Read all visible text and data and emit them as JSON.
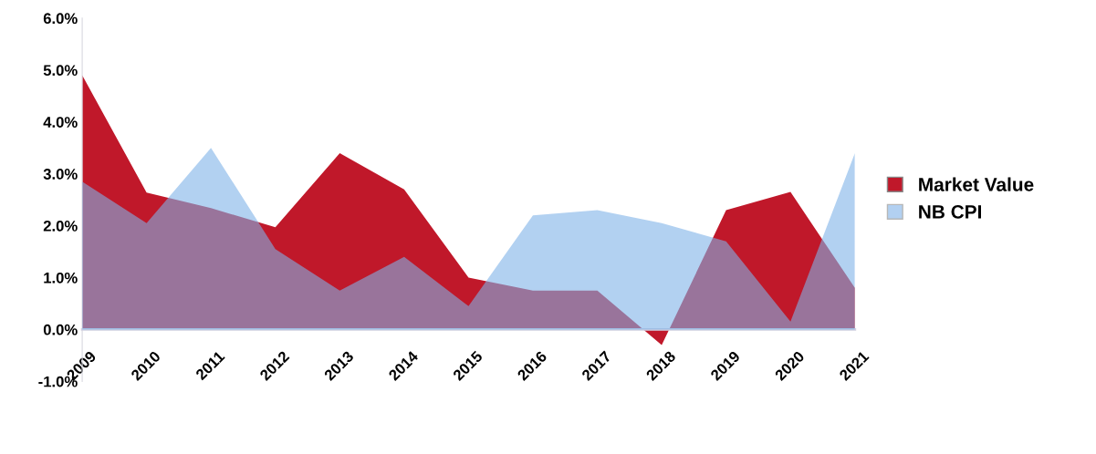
{
  "chart_data": {
    "type": "area",
    "categories": [
      "2009",
      "2010",
      "2011",
      "2012",
      "2013",
      "2014",
      "2015",
      "2016",
      "2017",
      "2018",
      "2019",
      "2020",
      "2021"
    ],
    "series": [
      {
        "name": "Market Value",
        "color": "#c0182a",
        "values": [
          4.9,
          2.64,
          2.34,
          1.97,
          3.4,
          2.7,
          1.0,
          0.75,
          0.75,
          -0.3,
          2.3,
          2.65,
          0.8
        ]
      },
      {
        "name": "NB CPI",
        "color": "#7fb2e8",
        "values": [
          2.85,
          2.05,
          3.5,
          1.55,
          0.75,
          1.4,
          0.45,
          2.2,
          2.3,
          2.05,
          1.7,
          0.15,
          3.4
        ]
      }
    ],
    "ylim": [
      -1,
      6
    ],
    "yticks": [
      {
        "value": -1,
        "label": "-1.0%"
      },
      {
        "value": 0,
        "label": "0.0%"
      },
      {
        "value": 1,
        "label": "1.0%"
      },
      {
        "value": 2,
        "label": "2.0%"
      },
      {
        "value": 3,
        "label": "3.0%"
      },
      {
        "value": 4,
        "label": "4.0%"
      },
      {
        "value": 5,
        "label": "5.0%"
      },
      {
        "value": 6,
        "label": "6.0%"
      }
    ],
    "grid": false,
    "legend": "right"
  }
}
